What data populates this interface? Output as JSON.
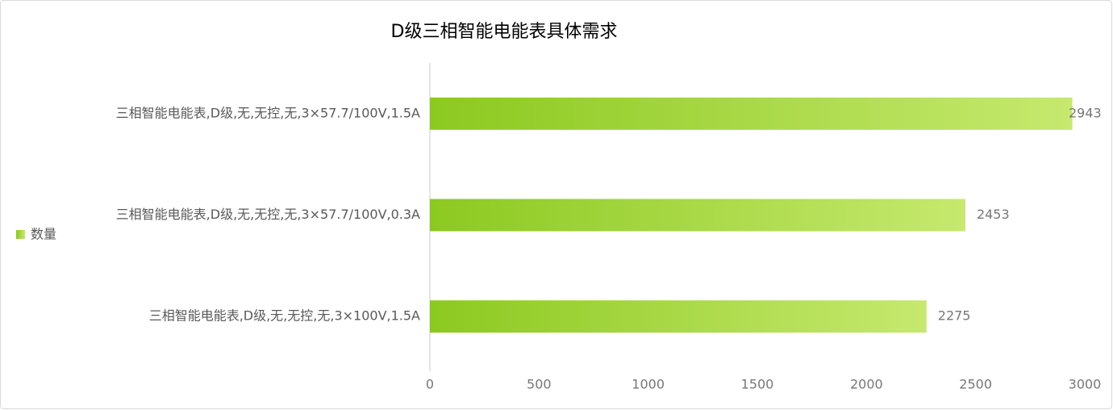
{
  "chart_data": {
    "type": "bar",
    "orientation": "horizontal",
    "title": "D级三相智能电能表具体需求",
    "categories": [
      "三相智能电能表,D级,无,无控,无,3×57.7/100V,1.5A",
      "三相智能电能表,D级,无,无控,无,3×57.7/100V,0.3A",
      "三相智能电能表,D级,无,无控,无,3×100V,1.5A"
    ],
    "series": [
      {
        "name": "数量",
        "color": "#8cc920",
        "values": [
          2943,
          2453,
          2275
        ]
      }
    ],
    "xlim": [
      0,
      3000
    ],
    "xticks": [
      0,
      500,
      1000,
      1500,
      2000,
      2500,
      3000
    ],
    "legend": "left"
  }
}
